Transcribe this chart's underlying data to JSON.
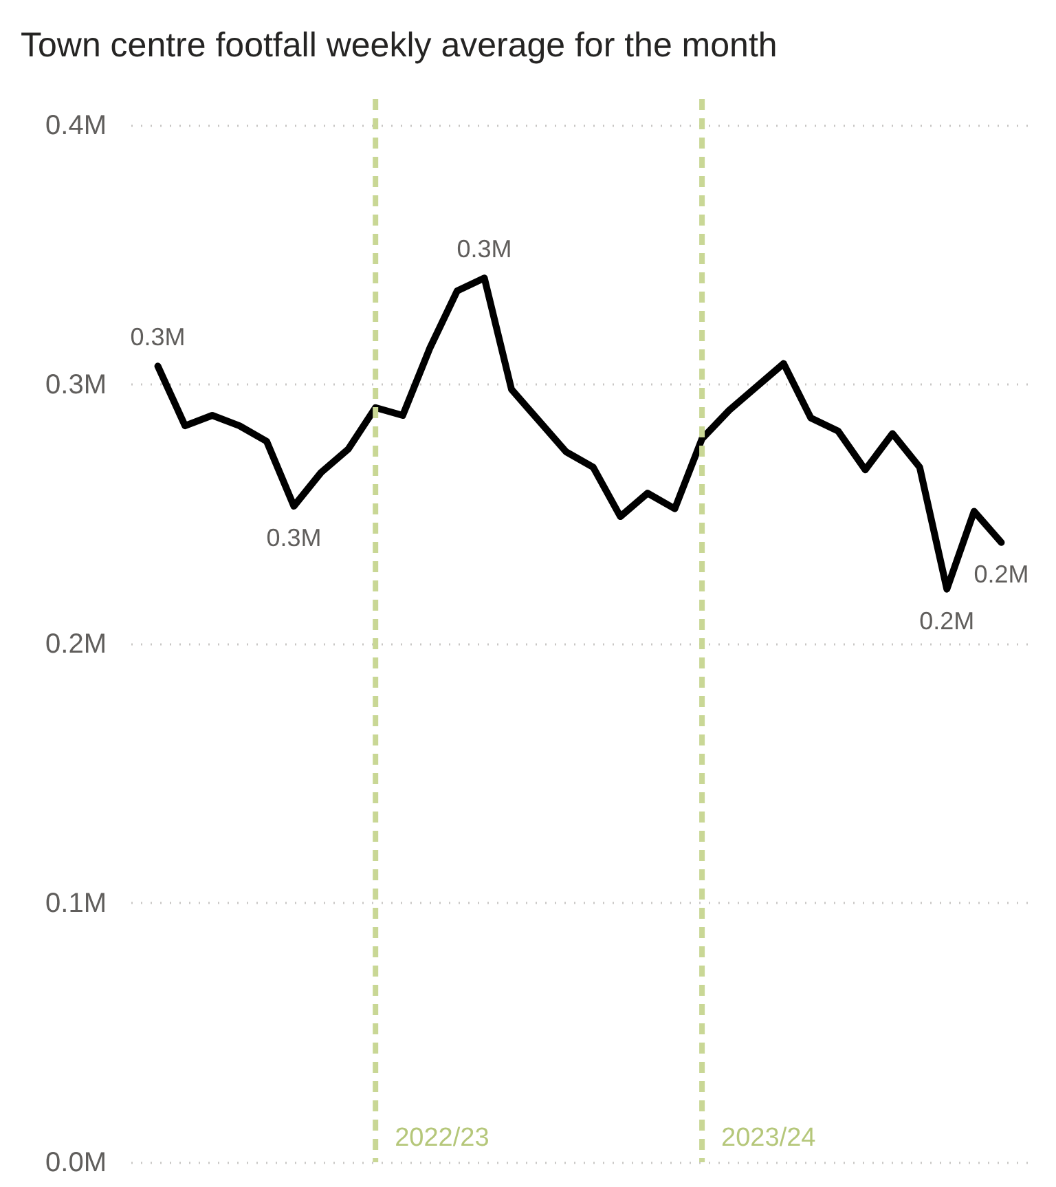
{
  "chart_data": {
    "type": "line",
    "title": "Town centre footfall weekly average for the month",
    "categories": [
      null,
      null,
      null,
      null,
      null,
      null,
      null,
      null,
      null,
      null,
      null,
      null,
      null,
      null,
      null,
      null,
      null,
      null,
      null,
      null,
      null,
      null,
      null,
      null,
      null,
      null,
      null,
      null,
      null,
      null,
      null,
      null
    ],
    "series": [
      {
        "color": "#000000",
        "values": [
          0.307,
          0.284,
          0.288,
          0.284,
          0.278,
          0.253,
          0.266,
          0.275,
          0.291,
          0.288,
          0.314,
          0.336,
          0.341,
          0.298,
          0.286,
          0.274,
          0.268,
          0.249,
          0.258,
          0.252,
          0.279,
          0.29,
          0.299,
          0.308,
          0.287,
          0.282,
          0.267,
          0.281,
          0.268,
          0.221,
          0.251,
          0.239
        ],
        "value_labels": [
          "0.3M",
          null,
          null,
          null,
          null,
          "0.3M",
          null,
          null,
          null,
          null,
          null,
          null,
          "0.3M",
          null,
          null,
          null,
          null,
          null,
          null,
          null,
          null,
          null,
          null,
          null,
          null,
          null,
          null,
          null,
          null,
          "0.2M",
          null,
          "0.2M"
        ]
      }
    ],
    "ylim": [
      0,
      0.41
    ],
    "yticks": [
      {
        "value": 0,
        "label": "0.0M"
      },
      {
        "value": 0.1,
        "label": "0.1M"
      },
      {
        "value": 0.2,
        "label": "0.2M"
      },
      {
        "value": 0.3,
        "label": "0.3M"
      },
      {
        "value": 0.4,
        "label": "0.4M"
      }
    ],
    "tick_labels": "y",
    "grid": "y",
    "marker": "none",
    "line_style": "solid",
    "annotations": [
      "2022/23",
      "2023/24"
    ]
  }
}
